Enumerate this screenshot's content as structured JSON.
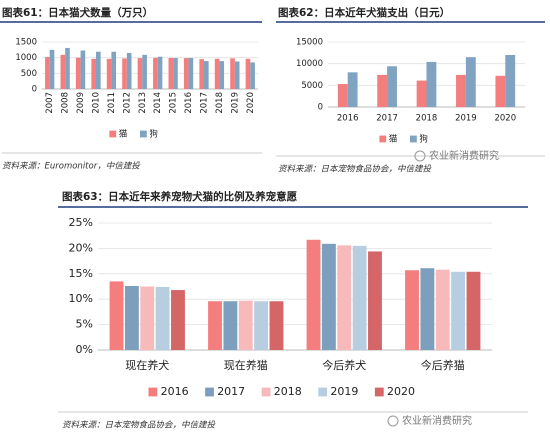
{
  "chart_data": [
    {
      "type": "bar",
      "title": "图表61：日本猫犬数量（万只）",
      "categories": [
        "2007",
        "2008",
        "2009",
        "2010",
        "2011",
        "2012",
        "2013",
        "2014",
        "2015",
        "2016",
        "2017",
        "2018",
        "2019",
        "2020"
      ],
      "series": [
        {
          "name": "猫",
          "color": "#f47e7e",
          "values": [
            1020,
            1090,
            1000,
            960,
            960,
            975,
            985,
            995,
            990,
            985,
            953,
            965,
            978,
            964
          ]
        },
        {
          "name": "狗",
          "color": "#7fa3c0",
          "values": [
            1250,
            1310,
            1230,
            1190,
            1190,
            1150,
            1090,
            1030,
            990,
            990,
            892,
            890,
            879,
            849
          ]
        }
      ],
      "ylim": [
        0,
        1500
      ],
      "yticks": [
        0,
        500,
        1000,
        1500
      ],
      "grid": true
    },
    {
      "type": "bar",
      "title": "图表62：日本近年犬猫支出（日元）",
      "categories": [
        "2016",
        "2017",
        "2018",
        "2019",
        "2020"
      ],
      "series": [
        {
          "name": "猫",
          "color": "#f47e7e",
          "values": [
            5300,
            7400,
            6100,
            7400,
            7200
          ]
        },
        {
          "name": "狗",
          "color": "#7fa3c0",
          "values": [
            8000,
            9400,
            10400,
            11500,
            12000
          ]
        }
      ],
      "ylim": [
        0,
        15000
      ],
      "yticks": [
        0,
        5000,
        10000,
        15000
      ],
      "grid": true
    },
    {
      "type": "bar",
      "title": "图表63：日本近年来养宠物犬猫的比例及养宠意愿",
      "categories": [
        "现在养犬",
        "现在养猫",
        "今后养犬",
        "今后养猫"
      ],
      "series": [
        {
          "name": "2016",
          "color": "#f47e7e",
          "values": [
            13.5,
            9.6,
            21.7,
            15.7
          ]
        },
        {
          "name": "2017",
          "color": "#7b9fbc",
          "values": [
            12.6,
            9.6,
            20.9,
            16.1
          ]
        },
        {
          "name": "2018",
          "color": "#f7b9b9",
          "values": [
            12.5,
            9.7,
            20.6,
            15.8
          ]
        },
        {
          "name": "2019",
          "color": "#b7cde0",
          "values": [
            12.4,
            9.6,
            20.5,
            15.4
          ]
        },
        {
          "name": "2020",
          "color": "#d46668",
          "values": [
            11.8,
            9.6,
            19.4,
            15.4
          ]
        }
      ],
      "ylim": [
        0,
        25
      ],
      "yticks": [
        {
          "value": 0,
          "label": "0%"
        },
        {
          "value": 5,
          "label": "5%"
        },
        {
          "value": 10,
          "label": "10%"
        },
        {
          "value": 15,
          "label": "15%"
        },
        {
          "value": 20,
          "label": "20%"
        },
        {
          "value": 25,
          "label": "25%"
        }
      ],
      "grid": true
    }
  ],
  "sources": [
    "资料来源：Euromonitor，中信建投",
    "资料来源：日本宠物食品协会，中信建投",
    "资料来源：日本宠物食品协会，中信建投"
  ],
  "watermarks": [
    "农业新消费研究",
    "农业新消费研究"
  ]
}
